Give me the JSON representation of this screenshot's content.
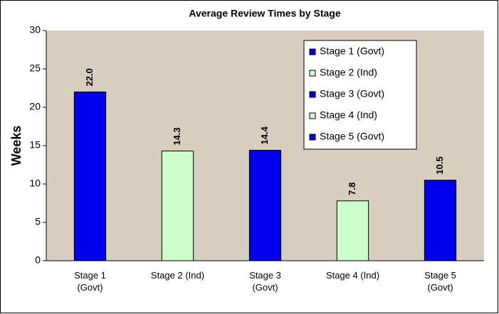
{
  "chart_data": {
    "type": "bar",
    "title": "Average Review Times by Stage",
    "y_label": "Weeks",
    "categories": [
      "Stage 1 (Govt)",
      "Stage 2 (Ind)",
      "Stage 3 (Govt)",
      "Stage 4 (Ind)",
      "Stage 5 (Govt)"
    ],
    "values": [
      22.0,
      14.3,
      14.4,
      7.8,
      10.5
    ],
    "value_labels": [
      "22.0",
      "14.3",
      "14.4",
      "7.8",
      "10.5"
    ],
    "colors": [
      "#0000ee",
      "#ccffcc",
      "#0000ee",
      "#ccffcc",
      "#0000ee"
    ],
    "ylim": [
      0,
      30
    ],
    "yticks": [
      0,
      5,
      10,
      15,
      20,
      25,
      30
    ],
    "legend": "top-right"
  }
}
